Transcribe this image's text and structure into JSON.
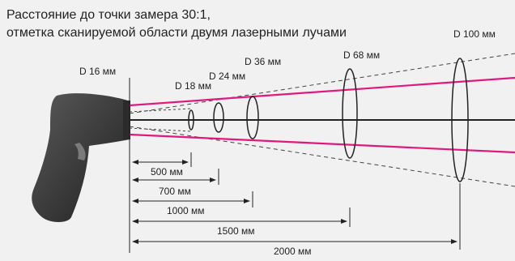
{
  "title_line1": "Расстояние до точки замера 30:1,",
  "title_line2": "отметка сканируемой области двумя лазерными лучами",
  "spot_labels": [
    "D 16 мм",
    "D 18 мм",
    "D 24 мм",
    "D 36 мм",
    "D 68 мм",
    "D 100 мм"
  ],
  "distance_labels": [
    "500 мм",
    "700 мм",
    "1000 мм",
    "1500 мм",
    "2000 мм"
  ],
  "colors": {
    "laser": "#e0197d",
    "device": "#3a3a3a",
    "lines": "#222222",
    "background": "#f1f1f1"
  }
}
